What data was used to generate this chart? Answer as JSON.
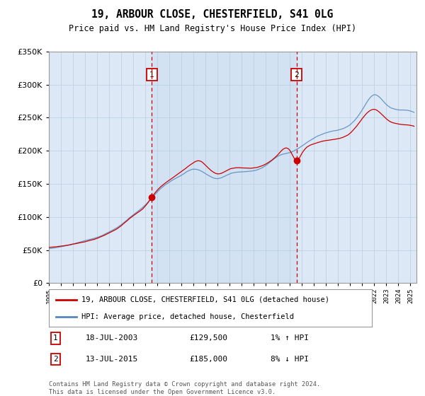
{
  "title": "19, ARBOUR CLOSE, CHESTERFIELD, S41 0LG",
  "subtitle": "Price paid vs. HM Land Registry's House Price Index (HPI)",
  "legend_line1": "19, ARBOUR CLOSE, CHESTERFIELD, S41 0LG (detached house)",
  "legend_line2": "HPI: Average price, detached house, Chesterfield",
  "annotation1_label": "1",
  "annotation1_date": "18-JUL-2003",
  "annotation1_price": "£129,500",
  "annotation1_hpi": "1% ↑ HPI",
  "annotation1_year": 2003.54,
  "annotation1_value": 129500,
  "annotation2_label": "2",
  "annotation2_date": "13-JUL-2015",
  "annotation2_price": "£185,000",
  "annotation2_hpi": "8% ↓ HPI",
  "annotation2_year": 2015.54,
  "annotation2_value": 185000,
  "ylim": [
    0,
    350000
  ],
  "xlim_start": 1995.0,
  "xlim_end": 2025.5,
  "background_color": "#ffffff",
  "plot_bg_color": "#dce8f5",
  "grid_color": "#b8cfe0",
  "red_line_color": "#cc0000",
  "blue_line_color": "#5588bb",
  "fill_color": "#ccdded",
  "vline_color": "#cc0000",
  "marker_box_color": "#cc0000",
  "footer_text": "Contains HM Land Registry data © Crown copyright and database right 2024.\nThis data is licensed under the Open Government Licence v3.0."
}
